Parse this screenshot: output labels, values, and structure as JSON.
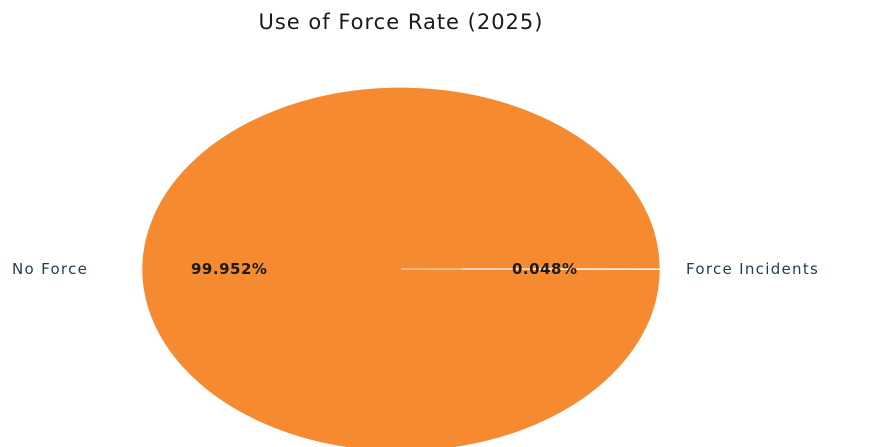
{
  "chart_data": {
    "type": "pie",
    "title": "Use of Force Rate (2025)",
    "slices": [
      {
        "label": "No Force",
        "value": 99.952,
        "pct_label": "99.952%",
        "color": "#f58a30"
      },
      {
        "label": "Force Incidents",
        "value": 0.048,
        "pct_label": "0.048%",
        "color": "#f3a35e"
      }
    ],
    "legend": "none"
  }
}
